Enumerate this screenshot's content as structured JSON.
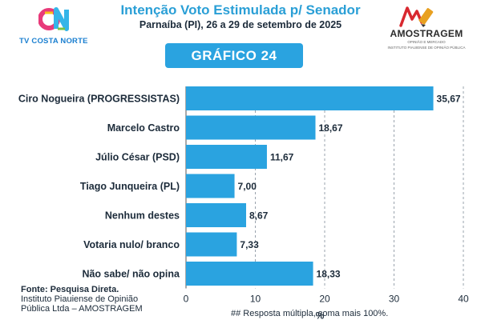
{
  "header": {
    "title": "Intenção Voto Estimulada p/ Senador",
    "subtitle": "Parnaíba (PI), 26 a 29 de setembro de 2025"
  },
  "logo_left": {
    "mark": "TV",
    "text": "TV COSTA NORTE"
  },
  "logo_right": {
    "name": "AMOSTRAGEM",
    "tagline": "OPINIÃO E MERCADO",
    "institute": "INSTITUTO PIAUIENSE DE OPINIÃO PÚBLICA"
  },
  "banner": {
    "label": "GRÁFICO 24"
  },
  "chart_data": {
    "type": "bar",
    "orientation": "horizontal",
    "categories": [
      "Ciro Nogueira (PROGRESSISTAS)",
      "Marcelo Castro",
      "Júlio César (PSD)",
      "Tiago Junqueira (PL)",
      "Nenhum destes",
      "Votaria nulo/ branco",
      "Não sabe/ não opina"
    ],
    "values": [
      35.67,
      18.67,
      11.67,
      7.0,
      8.67,
      7.33,
      18.33
    ],
    "value_labels": [
      "35,67",
      "18,67",
      "11,67",
      "7,00",
      "8,67",
      "7,33",
      "18,33"
    ],
    "xlim": [
      0,
      40
    ],
    "xticks": [
      "0",
      "10",
      "20",
      "30",
      "40"
    ],
    "xlabel": "%",
    "grid": "vertical dashed",
    "bar_color": "#2aa3e0"
  },
  "footer": {
    "source_bold": "Fonte: Pesquisa Direta.",
    "source_line2": "Instituto Piauiense de Opinião",
    "source_line3": "Pública Ltda – AMOSTRAGEM",
    "note": "## Resposta múltipla, soma mais 100%."
  }
}
